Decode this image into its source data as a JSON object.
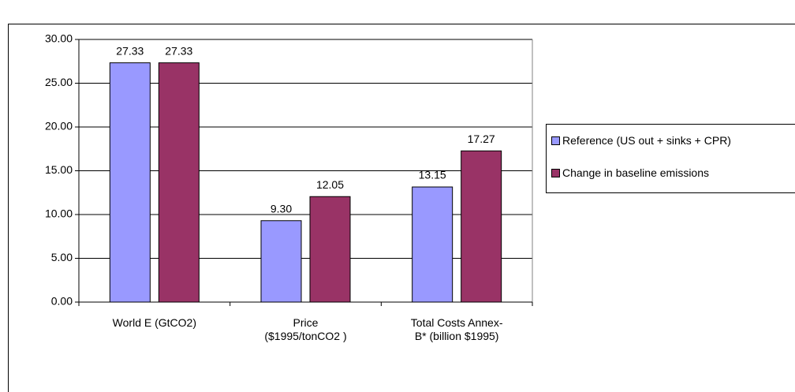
{
  "chart_data": {
    "type": "bar",
    "categories": [
      "World E (GtCO2)",
      "Price ($1995/tonCO2 )",
      "Total Costs Annex-B* (billion $1995)"
    ],
    "series": [
      {
        "name": "Reference (US out + sinks + CPR)",
        "color": "#9999ff",
        "values": [
          27.33,
          9.3,
          13.15
        ],
        "value_labels": [
          "27.33",
          "9.30",
          "13.15"
        ]
      },
      {
        "name": "Change in baseline emissions",
        "color": "#993366",
        "values": [
          27.33,
          12.05,
          17.27
        ],
        "value_labels": [
          "27.33",
          "12.05",
          "17.27"
        ]
      }
    ],
    "ylim": [
      0,
      30
    ],
    "yticks": [
      {
        "value": 0,
        "label": "0.00"
      },
      {
        "value": 5,
        "label": "5.00"
      },
      {
        "value": 10,
        "label": "10.00"
      },
      {
        "value": 15,
        "label": "15.00"
      },
      {
        "value": 20,
        "label": "20.00"
      },
      {
        "value": 25,
        "label": "25.00"
      },
      {
        "value": 30,
        "label": "30.00"
      }
    ],
    "grid": true,
    "legend": "right"
  }
}
